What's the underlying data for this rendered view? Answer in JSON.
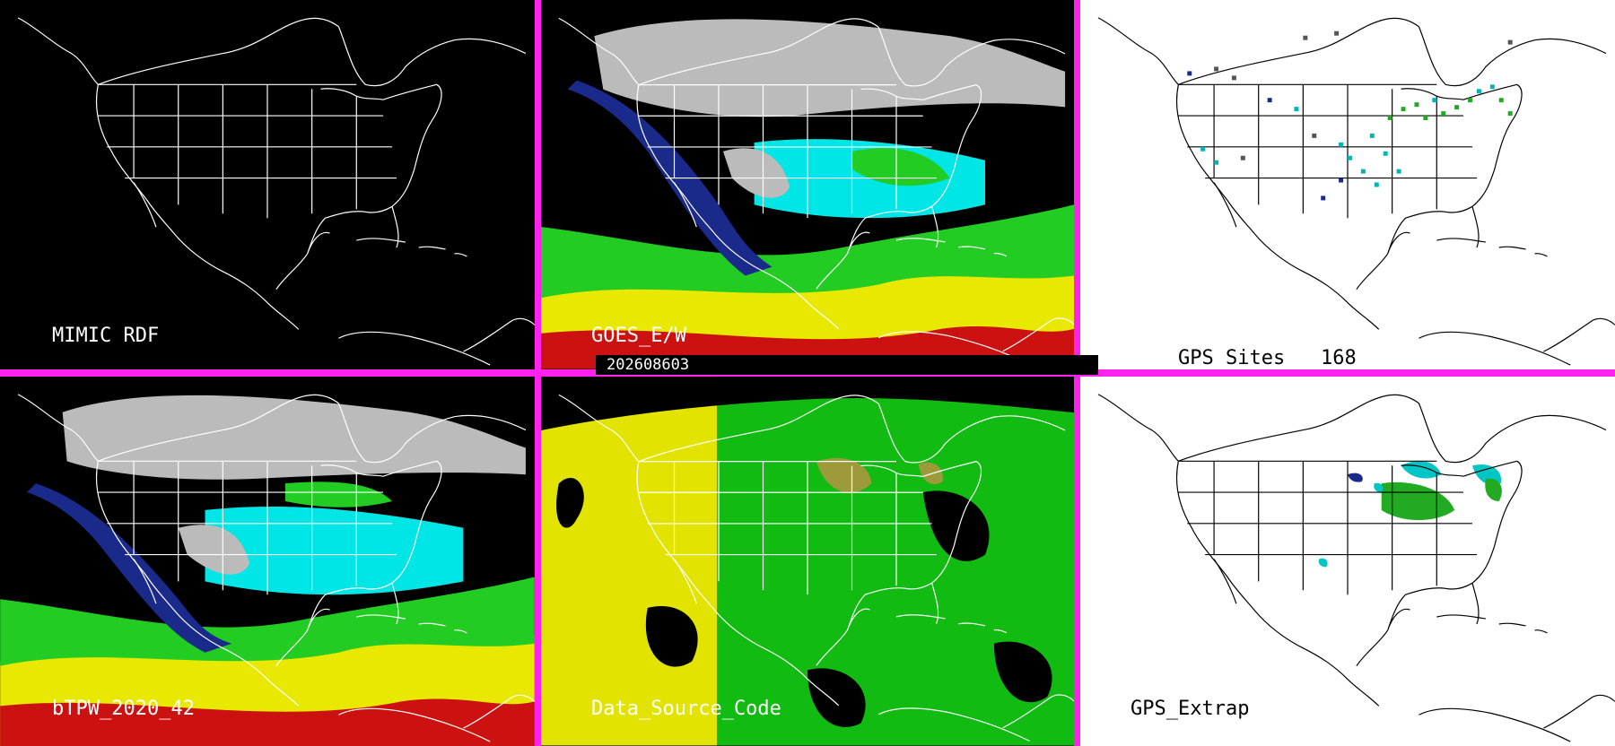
{
  "panels": [
    {
      "id": "mimic-rdf",
      "label": "MIMIC RDF",
      "background": "#000000",
      "outline": "#ffffff"
    },
    {
      "id": "goes",
      "label": "GOES_E/W",
      "background": "#000000",
      "outline": "#ffffff"
    },
    {
      "id": "gps-sites",
      "label": "GPS Sites",
      "count": "168",
      "background": "#ffffff",
      "outline": "#000000"
    },
    {
      "id": "btpw",
      "label": "bTPW_2020_42",
      "background": "#000000",
      "outline": "#ffffff"
    },
    {
      "id": "data-source",
      "label": "Data_Source_Code",
      "background": "#000000",
      "outline": "#ffffff"
    },
    {
      "id": "gps-extrap",
      "label": "GPS_Extrap",
      "background": "#ffffff",
      "outline": "#000000"
    }
  ],
  "timestamp": "202608603",
  "colors": {
    "separator": "#ff22ee",
    "dry": "#1a2a8a",
    "low": "#00e5e5",
    "mid": "#22cc22",
    "high": "#e8e800",
    "very_high": "#cc1111",
    "cloud": "#bbbbbb",
    "source_a": "#e3e300",
    "source_b": "#11bb11",
    "source_c": "#9c9a3a"
  }
}
